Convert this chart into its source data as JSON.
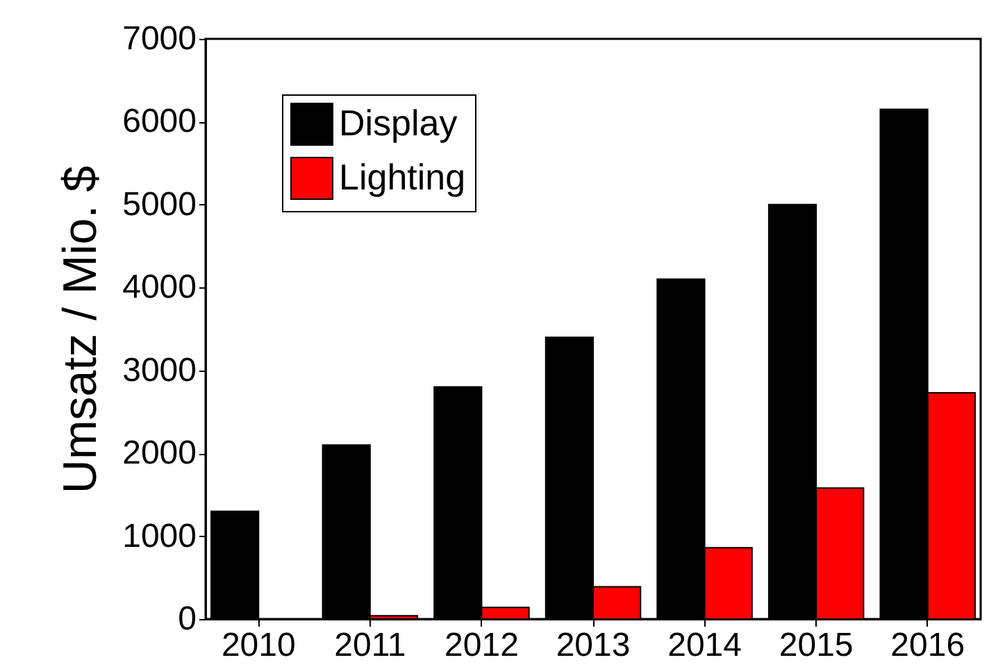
{
  "chart_data": {
    "type": "bar",
    "ylabel": "Umsatz / Mio. $",
    "categories": [
      "2010",
      "2011",
      "2012",
      "2013",
      "2014",
      "2015",
      "2016"
    ],
    "series": [
      {
        "name": "Display",
        "color": "#000000",
        "values": [
          1300,
          2100,
          2800,
          3400,
          4100,
          5000,
          6150
        ]
      },
      {
        "name": "Lighting",
        "color": "#ff0000",
        "values": [
          null,
          40,
          140,
          390,
          860,
          1580,
          2730
        ]
      }
    ],
    "ylim": [
      0,
      7000
    ],
    "yticks": [
      0,
      1000,
      2000,
      3000,
      4000,
      5000,
      6000,
      7000
    ],
    "grid": false,
    "legend": "top left"
  }
}
